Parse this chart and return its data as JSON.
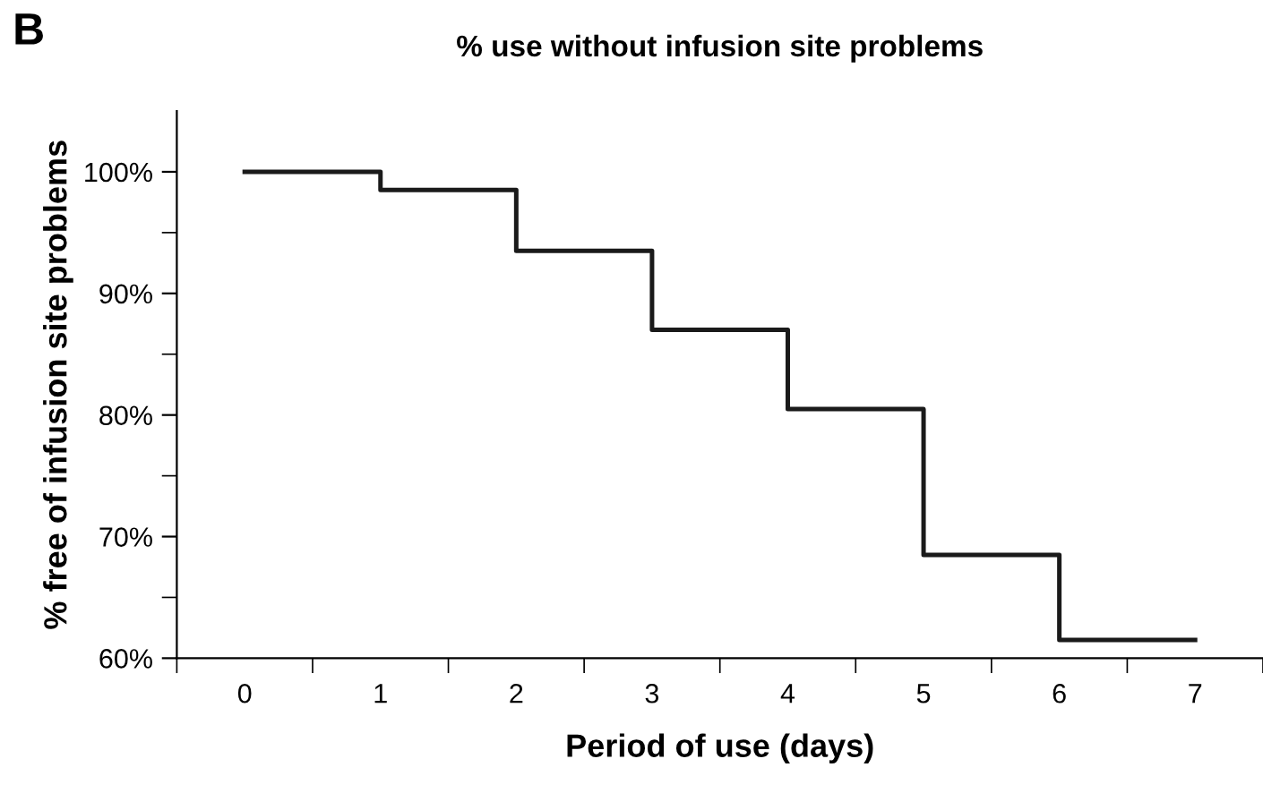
{
  "chart_data": {
    "type": "step",
    "title": "% use without infusion site problems",
    "xlabel": "Period of use (days)",
    "ylabel": "% free of infusion site problems",
    "annotations": [
      "B"
    ],
    "x": [
      0,
      1,
      2,
      3,
      4,
      5,
      6,
      7
    ],
    "series": [
      {
        "color": "#1a1a1a",
        "values": [
          100,
          98.5,
          93.5,
          87,
          80.5,
          68.5,
          61.5,
          61.5
        ]
      }
    ],
    "xlim": [
      -0.5,
      7.5
    ],
    "xticks": [
      0,
      1,
      2,
      3,
      4,
      5,
      6,
      7,
      {
        "value": -0.5,
        "label": null
      },
      {
        "value": 0.5,
        "label": null
      },
      {
        "value": 1.5,
        "label": null
      },
      {
        "value": 2.5,
        "label": null
      },
      {
        "value": 3.5,
        "label": null
      },
      {
        "value": 4.5,
        "label": null
      },
      {
        "value": 5.5,
        "label": null
      },
      {
        "value": 6.5,
        "label": null
      },
      {
        "value": 7.5,
        "label": null
      }
    ],
    "ylim": [
      60,
      105
    ],
    "yticks": [
      {
        "value": 60,
        "label": "60%"
      },
      {
        "value": 65,
        "label": null
      },
      {
        "value": 70,
        "label": "70%"
      },
      {
        "value": 75,
        "label": null
      },
      {
        "value": 80,
        "label": "80%"
      },
      {
        "value": 85,
        "label": null
      },
      {
        "value": 90,
        "label": "90%"
      },
      {
        "value": 95,
        "label": null
      },
      {
        "value": 100,
        "label": "100%"
      }
    ],
    "grid": false,
    "legend": false,
    "line_style": "solid",
    "marker": "none"
  }
}
